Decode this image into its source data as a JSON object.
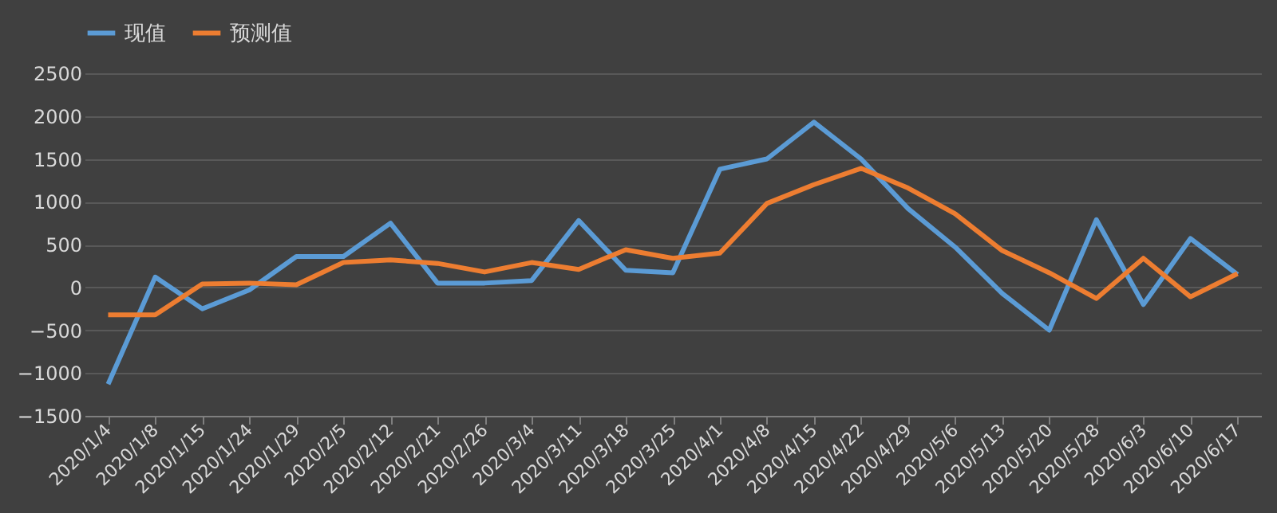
{
  "chart_data": {
    "type": "line",
    "categories": [
      "2020/1/4",
      "2020/1/8",
      "2020/1/15",
      "2020/1/24",
      "2020/1/29",
      "2020/2/5",
      "2020/2/12",
      "2020/2/21",
      "2020/2/26",
      "2020/3/4",
      "2020/3/11",
      "2020/3/18",
      "2020/3/25",
      "2020/4/1",
      "2020/4/8",
      "2020/4/15",
      "2020/4/22",
      "2020/4/29",
      "2020/5/6",
      "2020/5/13",
      "2020/5/20",
      "2020/5/28",
      "2020/6/3",
      "2020/6/10",
      "2020/6/17"
    ],
    "series": [
      {
        "name": "现值",
        "color": "#5b9bd5",
        "values": [
          -1130,
          120,
          -250,
          -30,
          360,
          360,
          750,
          50,
          50,
          80,
          780,
          200,
          170,
          1380,
          1500,
          1930,
          1500,
          920,
          470,
          -70,
          -500,
          790,
          -200,
          570,
          150
        ]
      },
      {
        "name": "预测值",
        "color": "#ed7d31",
        "values": [
          -320,
          -320,
          40,
          50,
          30,
          290,
          320,
          280,
          180,
          290,
          210,
          440,
          340,
          400,
          980,
          1200,
          1390,
          1160,
          860,
          430,
          170,
          -130,
          340,
          -110,
          160
        ]
      }
    ],
    "ylim": [
      -1500,
      2500
    ],
    "yticks": [
      -1500,
      -1000,
      -500,
      0,
      500,
      1000,
      1500,
      2000,
      2500
    ],
    "grid": "y",
    "legend": "top",
    "marker": "none",
    "line_style": "solid"
  }
}
